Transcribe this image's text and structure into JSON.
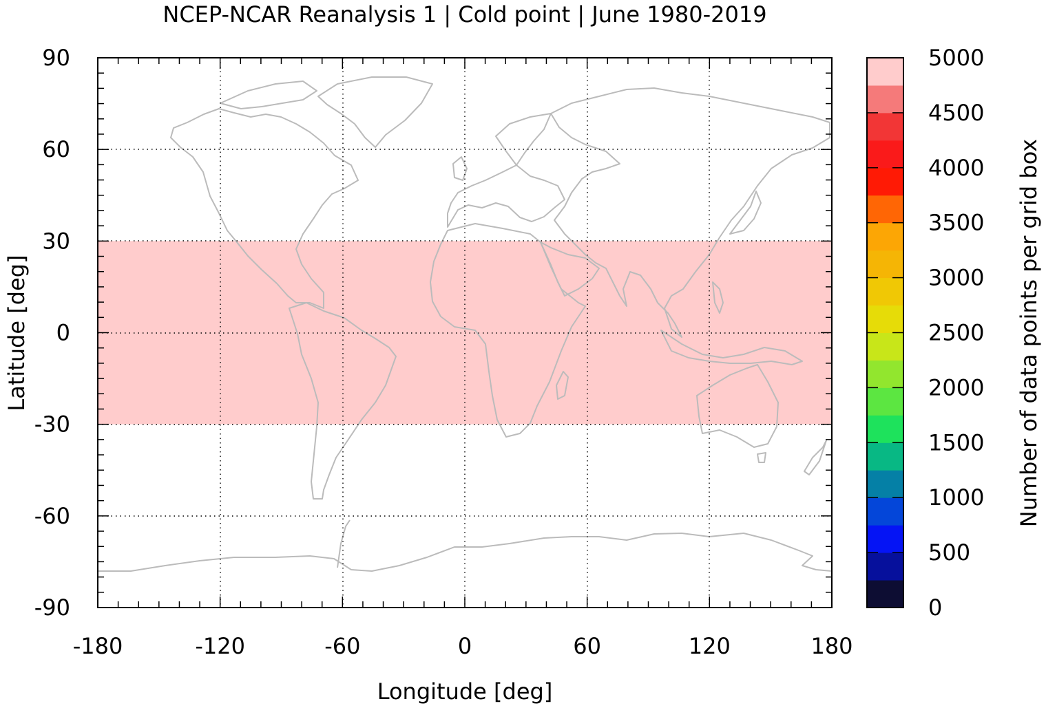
{
  "chart_data": {
    "type": "heatmap",
    "title": "NCEP-NCAR Reanalysis 1 | Cold point | June 1980-2019",
    "xlabel": "Longitude [deg]",
    "ylabel": "Latitude [deg]",
    "xlim": [
      -180,
      180
    ],
    "ylim": [
      -90,
      90
    ],
    "xticks": [
      -180,
      -120,
      -60,
      0,
      60,
      120,
      180
    ],
    "yticks": [
      90,
      60,
      30,
      0,
      -30,
      -60,
      -90
    ],
    "grid": true,
    "colorbar": {
      "label": "Number of data points per grid box",
      "range": [
        0,
        5000
      ],
      "ticks": [
        0,
        500,
        1000,
        1500,
        2000,
        2500,
        3000,
        3500,
        4000,
        4500,
        5000
      ],
      "bins": [
        {
          "from": 0,
          "to": 250,
          "color": "#0d0d33"
        },
        {
          "from": 250,
          "to": 500,
          "color": "#06109c"
        },
        {
          "from": 500,
          "to": 750,
          "color": "#0514f5"
        },
        {
          "from": 750,
          "to": 1000,
          "color": "#0446d9"
        },
        {
          "from": 1000,
          "to": 1250,
          "color": "#0580a6"
        },
        {
          "from": 1250,
          "to": 1500,
          "color": "#08b884"
        },
        {
          "from": 1500,
          "to": 1750,
          "color": "#1ee25c"
        },
        {
          "from": 1750,
          "to": 2000,
          "color": "#5ce641"
        },
        {
          "from": 2000,
          "to": 2250,
          "color": "#92e62e"
        },
        {
          "from": 2250,
          "to": 2500,
          "color": "#c8e619"
        },
        {
          "from": 2500,
          "to": 2750,
          "color": "#e6dc08"
        },
        {
          "from": 2750,
          "to": 3000,
          "color": "#f0c805"
        },
        {
          "from": 3000,
          "to": 3250,
          "color": "#f5b505"
        },
        {
          "from": 3250,
          "to": 3500,
          "color": "#fca605"
        },
        {
          "from": 3500,
          "to": 3750,
          "color": "#ff6605"
        },
        {
          "from": 3750,
          "to": 4000,
          "color": "#ff1a05"
        },
        {
          "from": 4000,
          "to": 4250,
          "color": "#fa1a1a"
        },
        {
          "from": 4250,
          "to": 4500,
          "color": "#f23636"
        },
        {
          "from": 4500,
          "to": 4750,
          "color": "#f57a7a"
        },
        {
          "from": 4750,
          "to": 5000,
          "color": "#ffcccc"
        }
      ]
    },
    "regions": [
      {
        "lon_min": -180,
        "lon_max": 180,
        "lat_min": -30,
        "lat_max": 30,
        "value": 5000,
        "color": "#ffcccc"
      }
    ],
    "coastline_color": "#bbbbbb"
  }
}
